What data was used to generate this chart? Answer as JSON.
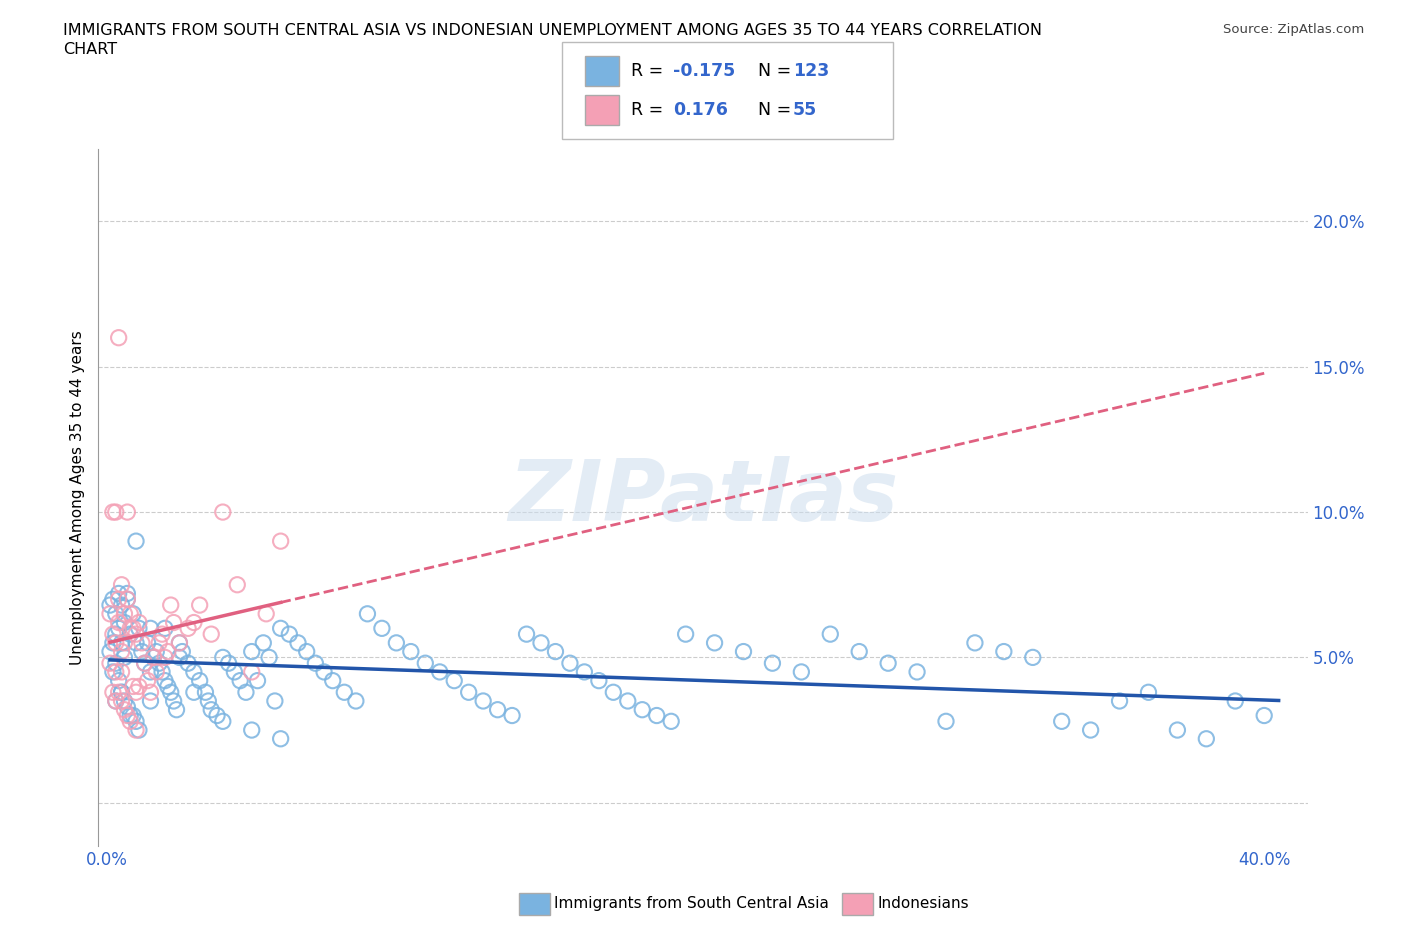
{
  "title_line1": "IMMIGRANTS FROM SOUTH CENTRAL ASIA VS INDONESIAN UNEMPLOYMENT AMONG AGES 35 TO 44 YEARS CORRELATION",
  "title_line2": "CHART",
  "source_text": "Source: ZipAtlas.com",
  "ylabel": "Unemployment Among Ages 35 to 44 years",
  "xlim": [
    -0.003,
    0.415
  ],
  "ylim": [
    -0.015,
    0.225
  ],
  "grid_color": "#cccccc",
  "blue_color": "#7ab3e0",
  "pink_color": "#f4a0b5",
  "blue_line_color": "#2255aa",
  "pink_line_color": "#e06080",
  "blue_R": -0.175,
  "blue_N": 123,
  "pink_R": 0.176,
  "pink_N": 55,
  "legend_label_blue": "Immigrants from South Central Asia",
  "legend_label_pink": "Indonesians",
  "accent_color": "#3366cc",
  "blue_scatter_x": [
    0.001,
    0.001,
    0.002,
    0.002,
    0.002,
    0.003,
    0.003,
    0.003,
    0.003,
    0.004,
    0.004,
    0.004,
    0.005,
    0.005,
    0.005,
    0.006,
    0.006,
    0.006,
    0.007,
    0.007,
    0.008,
    0.008,
    0.009,
    0.009,
    0.01,
    0.01,
    0.011,
    0.011,
    0.012,
    0.013,
    0.014,
    0.015,
    0.015,
    0.016,
    0.017,
    0.018,
    0.019,
    0.02,
    0.021,
    0.022,
    0.023,
    0.024,
    0.025,
    0.026,
    0.028,
    0.03,
    0.032,
    0.034,
    0.035,
    0.036,
    0.038,
    0.04,
    0.042,
    0.044,
    0.046,
    0.048,
    0.05,
    0.052,
    0.054,
    0.056,
    0.058,
    0.06,
    0.063,
    0.066,
    0.069,
    0.072,
    0.075,
    0.078,
    0.082,
    0.086,
    0.09,
    0.095,
    0.1,
    0.105,
    0.11,
    0.115,
    0.12,
    0.125,
    0.13,
    0.135,
    0.14,
    0.145,
    0.15,
    0.155,
    0.16,
    0.165,
    0.17,
    0.175,
    0.18,
    0.185,
    0.19,
    0.195,
    0.2,
    0.21,
    0.22,
    0.23,
    0.24,
    0.25,
    0.26,
    0.27,
    0.28,
    0.29,
    0.3,
    0.31,
    0.32,
    0.33,
    0.34,
    0.35,
    0.36,
    0.37,
    0.38,
    0.39,
    0.4,
    0.005,
    0.007,
    0.01,
    0.015,
    0.02,
    0.025,
    0.03,
    0.04,
    0.05,
    0.06
  ],
  "blue_scatter_y": [
    0.052,
    0.068,
    0.045,
    0.055,
    0.07,
    0.048,
    0.058,
    0.065,
    0.035,
    0.042,
    0.06,
    0.072,
    0.038,
    0.055,
    0.068,
    0.035,
    0.05,
    0.062,
    0.033,
    0.072,
    0.03,
    0.058,
    0.03,
    0.065,
    0.028,
    0.055,
    0.025,
    0.06,
    0.052,
    0.048,
    0.055,
    0.045,
    0.06,
    0.05,
    0.052,
    0.048,
    0.045,
    0.042,
    0.04,
    0.038,
    0.035,
    0.032,
    0.055,
    0.052,
    0.048,
    0.045,
    0.042,
    0.038,
    0.035,
    0.032,
    0.03,
    0.05,
    0.048,
    0.045,
    0.042,
    0.038,
    0.052,
    0.042,
    0.055,
    0.05,
    0.035,
    0.06,
    0.058,
    0.055,
    0.052,
    0.048,
    0.045,
    0.042,
    0.038,
    0.035,
    0.065,
    0.06,
    0.055,
    0.052,
    0.048,
    0.045,
    0.042,
    0.038,
    0.035,
    0.032,
    0.03,
    0.058,
    0.055,
    0.052,
    0.048,
    0.045,
    0.042,
    0.038,
    0.035,
    0.032,
    0.03,
    0.028,
    0.058,
    0.055,
    0.052,
    0.048,
    0.045,
    0.058,
    0.052,
    0.048,
    0.045,
    0.028,
    0.055,
    0.052,
    0.05,
    0.028,
    0.025,
    0.035,
    0.038,
    0.025,
    0.022,
    0.035,
    0.03,
    0.038,
    0.07,
    0.09,
    0.035,
    0.06,
    0.05,
    0.038,
    0.028,
    0.025,
    0.022
  ],
  "pink_scatter_x": [
    0.001,
    0.001,
    0.002,
    0.002,
    0.003,
    0.003,
    0.003,
    0.004,
    0.004,
    0.004,
    0.005,
    0.005,
    0.005,
    0.006,
    0.006,
    0.007,
    0.007,
    0.008,
    0.008,
    0.009,
    0.009,
    0.01,
    0.01,
    0.011,
    0.011,
    0.012,
    0.013,
    0.014,
    0.015,
    0.016,
    0.017,
    0.018,
    0.019,
    0.02,
    0.021,
    0.022,
    0.023,
    0.025,
    0.028,
    0.03,
    0.032,
    0.036,
    0.04,
    0.045,
    0.05,
    0.055,
    0.06,
    0.003,
    0.004,
    0.005,
    0.006,
    0.008,
    0.01,
    0.002,
    0.007
  ],
  "pink_scatter_y": [
    0.048,
    0.065,
    0.038,
    0.058,
    0.045,
    0.055,
    0.035,
    0.062,
    0.07,
    0.038,
    0.035,
    0.052,
    0.075,
    0.032,
    0.065,
    0.03,
    0.07,
    0.028,
    0.065,
    0.04,
    0.06,
    0.025,
    0.058,
    0.04,
    0.062,
    0.055,
    0.048,
    0.042,
    0.038,
    0.05,
    0.045,
    0.055,
    0.058,
    0.05,
    0.052,
    0.068,
    0.062,
    0.055,
    0.06,
    0.062,
    0.068,
    0.058,
    0.1,
    0.075,
    0.045,
    0.065,
    0.09,
    0.1,
    0.16,
    0.045,
    0.055,
    0.06,
    0.038,
    0.1,
    0.1
  ]
}
